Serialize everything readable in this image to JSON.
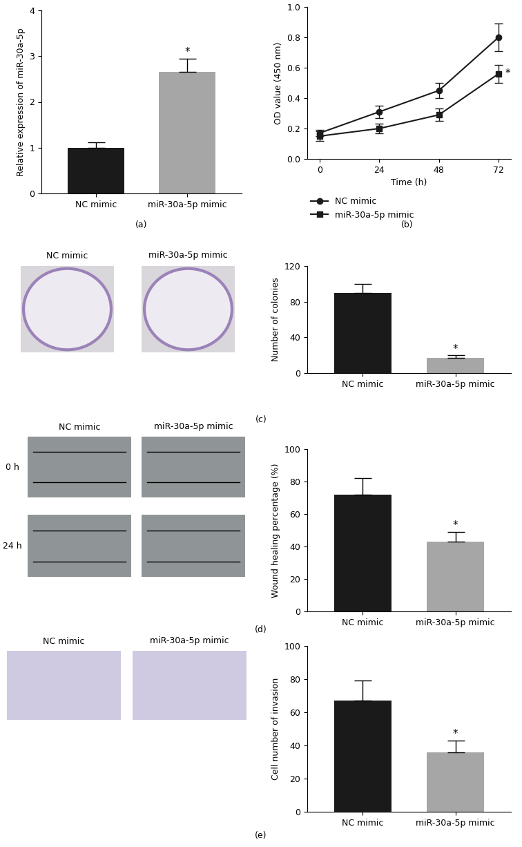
{
  "chart_data": [
    {
      "panel_label": "(a)",
      "type": "bar",
      "categories": [
        "NC mimic",
        "miR-30a-5p mimic"
      ],
      "values": [
        1.0,
        2.65
      ],
      "errors": [
        0.12,
        0.3
      ],
      "colors": [
        "#1a1a1a",
        "#a6a6a6"
      ],
      "y_label": "Relative expression of miR-30a-5p",
      "ylim": [
        0,
        4
      ],
      "yticks": [
        0,
        1,
        2,
        3,
        4
      ],
      "annotations": [
        {
          "category": "miR-30a-5p mimic",
          "text": "*"
        }
      ]
    },
    {
      "panel_label": "(b)",
      "type": "line",
      "x": [
        0,
        24,
        48,
        72
      ],
      "x_label": "Time (h)",
      "y_label": "OD value (450 nm)",
      "xlim": [
        -5,
        77
      ],
      "xticks": [
        0,
        24,
        48,
        72
      ],
      "ylim": [
        0,
        1.0
      ],
      "yticks": [
        {
          "value": 0,
          "label": "0.0"
        },
        {
          "value": 0.2,
          "label": "0.2"
        },
        {
          "value": 0.4,
          "label": "0.4"
        },
        {
          "value": 0.6,
          "label": "0.6"
        },
        {
          "value": 0.8,
          "label": "0.8"
        },
        {
          "value": 1.0,
          "label": "1.0"
        }
      ],
      "legend": "bottom",
      "series": [
        {
          "name": "NC mimic",
          "color": "#1a1a1a",
          "marker": "circle",
          "line_style": "solid",
          "values": [
            0.17,
            0.31,
            0.45,
            0.8
          ],
          "errors": [
            0.02,
            0.04,
            0.05,
            0.09
          ]
        },
        {
          "name": "miR-30a-5p mimic",
          "color": "#1a1a1a",
          "marker": "square",
          "line_style": "solid",
          "values": [
            0.15,
            0.2,
            0.29,
            0.56
          ],
          "errors": [
            0.03,
            0.03,
            0.04,
            0.06
          ]
        }
      ],
      "annotations": [
        {
          "series": "miR-30a-5p mimic",
          "x": 72,
          "text": "*"
        }
      ]
    },
    {
      "panel_label": "(c)",
      "type": "bar",
      "categories": [
        "NC mimic",
        "miR-30a-5p mimic"
      ],
      "values": [
        90,
        17
      ],
      "errors": [
        10,
        3
      ],
      "colors": [
        "#1a1a1a",
        "#a6a6a6"
      ],
      "y_label": "Number of colonies",
      "ylim": [
        0,
        120
      ],
      "yticks": [
        0,
        40,
        80,
        120
      ],
      "annotations": [
        {
          "category": "miR-30a-5p mimic",
          "text": "*"
        }
      ],
      "photos": {
        "columns": [
          "NC mimic",
          "miR-30a-5p mimic"
        ]
      }
    },
    {
      "panel_label": "(d)",
      "type": "bar",
      "categories": [
        "NC mimic",
        "miR-30a-5p mimic"
      ],
      "values": [
        72,
        43
      ],
      "errors": [
        10,
        6
      ],
      "colors": [
        "#1a1a1a",
        "#a6a6a6"
      ],
      "y_label": "Wound healing percentage (%)",
      "ylim": [
        0,
        100
      ],
      "yticks": [
        0,
        20,
        40,
        60,
        80,
        100
      ],
      "annotations": [
        {
          "category": "miR-30a-5p mimic",
          "text": "*"
        }
      ],
      "photos": {
        "columns": [
          "NC mimic",
          "miR-30a-5p mimic"
        ],
        "rows": [
          "0 h",
          "24 h"
        ]
      }
    },
    {
      "panel_label": "(e)",
      "type": "bar",
      "categories": [
        "NC mimic",
        "miR-30a-5p mimic"
      ],
      "values": [
        67,
        36
      ],
      "errors": [
        12,
        7
      ],
      "colors": [
        "#1a1a1a",
        "#a6a6a6"
      ],
      "y_label": "Cell number of invasion",
      "ylim": [
        0,
        100
      ],
      "yticks": [
        0,
        20,
        40,
        60,
        80,
        100
      ],
      "annotations": [
        {
          "category": "miR-30a-5p mimic",
          "text": "*"
        }
      ],
      "photos": {
        "columns": [
          "NC mimic",
          "miR-30a-5p mimic"
        ]
      }
    }
  ]
}
